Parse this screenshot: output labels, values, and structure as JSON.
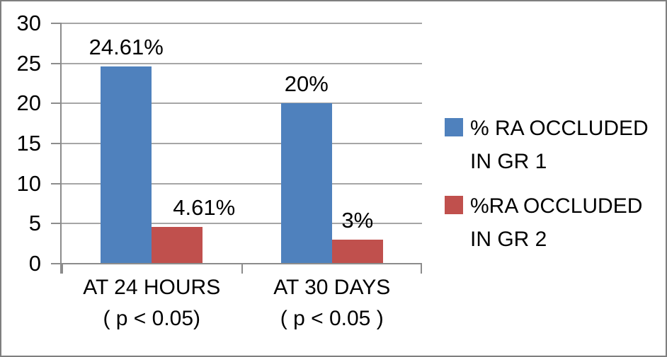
{
  "chart_data": {
    "type": "bar",
    "title": "",
    "xlabel": "",
    "ylabel": "",
    "grid": true,
    "legend_position": "right",
    "categories": [
      {
        "label": "AT 24 HOURS ( p < 0.05)",
        "label_lines": [
          "AT 24 HOURS",
          "( p < 0.05)"
        ]
      },
      {
        "label": "AT 30 DAYS ( p < 0.05 )",
        "label_lines": [
          "AT 30 DAYS",
          "( p < 0.05 )"
        ]
      }
    ],
    "series": [
      {
        "name": "% RA OCCLUDED IN GR 1",
        "name_lines": [
          "% RA OCCLUDED",
          "IN GR 1"
        ],
        "color": "#4F81BD",
        "values": [
          24.61,
          20
        ],
        "data_labels": [
          "24.61%",
          "20%"
        ]
      },
      {
        "name": "%RA OCCLUDED IN GR 2",
        "name_lines": [
          "%RA OCCLUDED",
          "IN GR 2"
        ],
        "color": "#C0504D",
        "values": [
          4.61,
          3
        ],
        "data_labels": [
          "4.61%",
          "3%"
        ]
      }
    ],
    "y_axis": {
      "min": 0,
      "max": 30,
      "tick_interval": 5,
      "ticks": [
        0,
        5,
        10,
        15,
        20,
        25,
        30
      ]
    },
    "colors": {
      "gridline": "#A6A6A6",
      "axis": "#8C8C8C",
      "text": "#000000",
      "background": "#FFFFFF",
      "frame_border": "#7F7F7F"
    }
  }
}
